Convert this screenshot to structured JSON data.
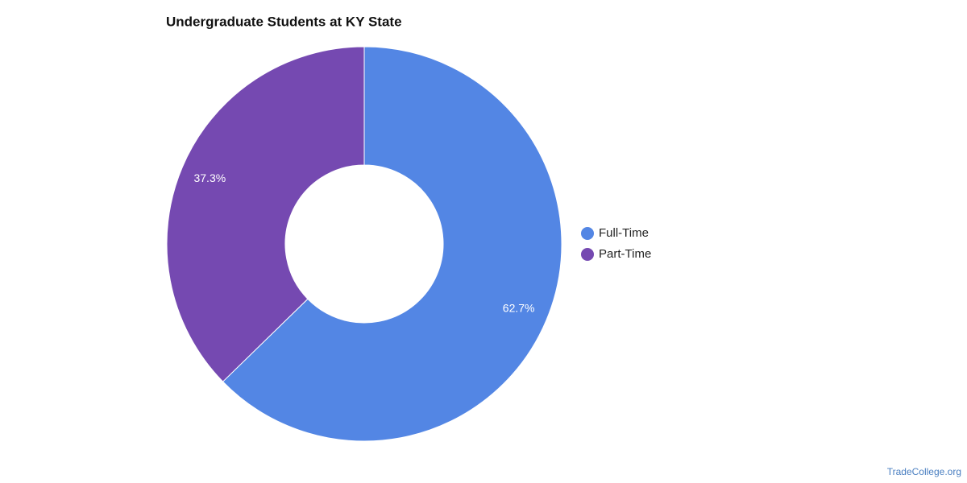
{
  "chart_data": {
    "type": "donut",
    "title": "Undergraduate Students at KY State",
    "series": [
      {
        "name": "Full-Time",
        "color": "#5386e4",
        "values": [
          62.7
        ],
        "value_labels": [
          "62.7%"
        ]
      },
      {
        "name": "Part-Time",
        "color": "#7549b1",
        "values": [
          37.3
        ],
        "value_labels": [
          "37.3%"
        ]
      }
    ],
    "legend": "right",
    "source": "TradeCollege.org"
  }
}
